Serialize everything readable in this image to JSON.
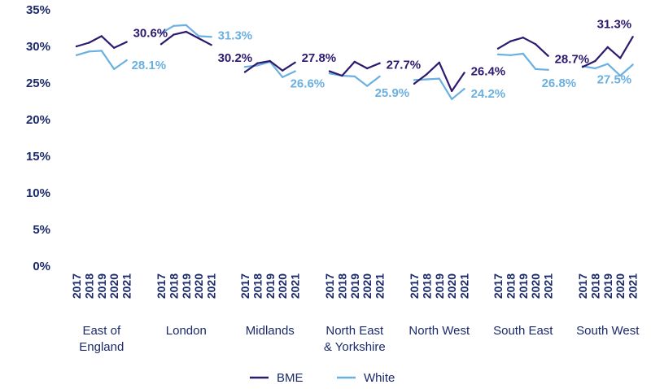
{
  "chart_data": {
    "type": "line",
    "title": "",
    "xlabel": "",
    "ylabel": "",
    "ylim": [
      0,
      35
    ],
    "yticks": [
      "0%",
      "5%",
      "10%",
      "15%",
      "20%",
      "25%",
      "30%",
      "35%"
    ],
    "ytick_values": [
      0,
      5,
      10,
      15,
      20,
      25,
      30,
      35
    ],
    "grid": false,
    "legend": "bottom",
    "years": [
      "2017",
      "2018",
      "2019",
      "2020",
      "2021"
    ],
    "colors": {
      "BME": "#2d1a6e",
      "White": "#6ab0e0",
      "text": "#1b2a6b"
    },
    "groups": [
      {
        "region_lines": [
          "East of",
          "England"
        ],
        "bme_label": "30.6%",
        "white_label": "28.1%"
      },
      {
        "region_lines": [
          "London"
        ],
        "bme_label": "30.2%",
        "white_label": "31.3%"
      },
      {
        "region_lines": [
          "Midlands"
        ],
        "bme_label": "27.8%",
        "white_label": "26.6%"
      },
      {
        "region_lines": [
          "North East",
          "& Yorkshire"
        ],
        "bme_label": "27.7%",
        "white_label": "25.9%"
      },
      {
        "region_lines": [
          "North West"
        ],
        "bme_label": "26.4%",
        "white_label": "24.2%"
      },
      {
        "region_lines": [
          "South East"
        ],
        "bme_label": "28.7%",
        "white_label": "26.8%"
      },
      {
        "region_lines": [
          "South West"
        ],
        "bme_label": "31.3%",
        "white_label": "27.5%"
      }
    ],
    "series": [
      {
        "name": "BME",
        "groups": [
          [
            30.0,
            30.5,
            31.4,
            29.8,
            30.6
          ],
          [
            30.3,
            31.6,
            32.0,
            31.1,
            30.2
          ],
          [
            26.5,
            27.7,
            28.0,
            26.7,
            27.8
          ],
          [
            26.6,
            26.0,
            27.9,
            27.0,
            27.7
          ],
          [
            24.9,
            26.2,
            27.8,
            23.9,
            26.4
          ],
          [
            29.7,
            30.7,
            31.2,
            30.3,
            28.7
          ],
          [
            27.2,
            28.0,
            29.9,
            28.4,
            31.3
          ]
        ]
      },
      {
        "name": "White",
        "groups": [
          [
            28.8,
            29.3,
            29.4,
            26.9,
            28.1
          ],
          [
            31.8,
            32.8,
            32.9,
            31.4,
            31.3
          ],
          [
            27.2,
            27.4,
            27.9,
            25.8,
            26.6
          ],
          [
            26.3,
            26.0,
            25.9,
            24.6,
            25.9
          ],
          [
            25.4,
            25.5,
            25.6,
            22.8,
            24.2
          ],
          [
            28.9,
            28.8,
            29.0,
            26.9,
            26.8
          ],
          [
            27.3,
            27.0,
            27.6,
            26.0,
            27.5
          ]
        ]
      }
    ]
  }
}
